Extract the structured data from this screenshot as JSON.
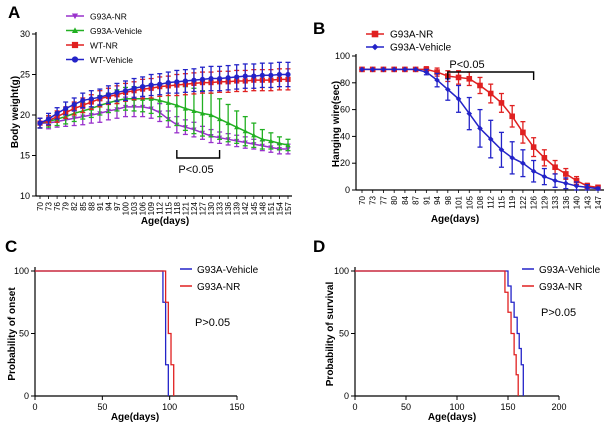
{
  "figure": {
    "panels": [
      "A",
      "B",
      "C",
      "D"
    ]
  },
  "chart_data": [
    {
      "panel": "A",
      "type": "line",
      "ylabel": "Body weight(g)",
      "xlabel": "Age(days)",
      "ylim": [
        10,
        30
      ],
      "yticks": [
        "10",
        "15",
        "20",
        "25",
        "30"
      ],
      "x": [
        70,
        73,
        76,
        79,
        82,
        85,
        88,
        91,
        94,
        97,
        100,
        103,
        106,
        109,
        112,
        115,
        118,
        121,
        124,
        127,
        130,
        133,
        136,
        139,
        142,
        145,
        148,
        151,
        154,
        157
      ],
      "x_tick_labels": [
        "70",
        "73",
        "76",
        "79",
        "82",
        "85",
        "88",
        "91",
        "94",
        "97",
        "100",
        "103",
        "106",
        "109",
        "112",
        "115",
        "118",
        "121",
        "124",
        "127",
        "130",
        "133",
        "136",
        "139",
        "142",
        "145",
        "148",
        "151",
        "154",
        "157"
      ],
      "series": [
        {
          "name": "G93A-NR",
          "color": "#9932CC",
          "marker": "triangle-down",
          "values": [
            19.0,
            19.0,
            19.2,
            19.4,
            19.6,
            19.8,
            20.0,
            20.2,
            20.5,
            20.7,
            21.0,
            21.0,
            21.0,
            20.8,
            20.3,
            19.5,
            18.8,
            18.5,
            18.2,
            17.8,
            17.4,
            17.2,
            17.0,
            16.8,
            16.6,
            16.4,
            16.2,
            16.0,
            15.8,
            15.8
          ],
          "errors": [
            0.6,
            0.7,
            0.7,
            0.8,
            0.9,
            1.0,
            1.0,
            1.1,
            1.1,
            1.1,
            1.2,
            1.2,
            1.2,
            1.2,
            1.1,
            1.0,
            1.0,
            0.9,
            0.9,
            0.8,
            0.8,
            0.7,
            0.7,
            0.7,
            0.7,
            0.6,
            0.6,
            0.6,
            0.6,
            0.6
          ]
        },
        {
          "name": "G93A-Vehicle",
          "color": "#22B022",
          "marker": "triangle-up",
          "values": [
            19.0,
            19.2,
            19.5,
            19.8,
            20.2,
            20.5,
            20.8,
            21.2,
            21.5,
            21.8,
            22.0,
            22.0,
            22.0,
            22.0,
            21.8,
            21.5,
            21.2,
            20.8,
            20.5,
            20.2,
            20.0,
            19.5,
            19.0,
            18.5,
            18.0,
            17.5,
            17.0,
            16.8,
            16.5,
            16.3
          ],
          "errors": [
            0.6,
            0.7,
            0.8,
            0.9,
            1.0,
            1.0,
            1.1,
            1.2,
            1.2,
            1.3,
            1.4,
            1.5,
            1.6,
            1.8,
            2.0,
            2.2,
            2.5,
            2.7,
            2.8,
            2.8,
            2.7,
            2.5,
            2.3,
            2.0,
            1.8,
            1.5,
            1.2,
            1.0,
            0.8,
            0.7
          ]
        },
        {
          "name": "WT-NR",
          "color": "#E02020",
          "marker": "square",
          "values": [
            19.0,
            19.3,
            19.8,
            20.3,
            20.8,
            21.2,
            21.6,
            22.0,
            22.3,
            22.5,
            22.8,
            23.0,
            23.2,
            23.3,
            23.5,
            23.6,
            23.7,
            23.8,
            23.9,
            24.0,
            24.0,
            24.1,
            24.1,
            24.2,
            24.2,
            24.3,
            24.3,
            24.3,
            24.4,
            24.4
          ],
          "errors": [
            0.6,
            0.6,
            0.7,
            0.7,
            0.8,
            0.9,
            0.9,
            1.0,
            1.0,
            1.1,
            1.1,
            1.1,
            1.2,
            1.2,
            1.2,
            1.2,
            1.3,
            1.3,
            1.3,
            1.3,
            1.3,
            1.3,
            1.3,
            1.3,
            1.3,
            1.3,
            1.3,
            1.3,
            1.3,
            1.3
          ]
        },
        {
          "name": "WT-Vehicle",
          "color": "#2323C8",
          "marker": "circle",
          "values": [
            19.0,
            19.5,
            20.2,
            20.8,
            21.3,
            21.8,
            22.0,
            22.2,
            22.5,
            22.8,
            23.0,
            23.3,
            23.5,
            23.7,
            23.8,
            24.0,
            24.1,
            24.2,
            24.3,
            24.4,
            24.5,
            24.5,
            24.6,
            24.7,
            24.8,
            24.8,
            24.9,
            24.9,
            25.0,
            25.0
          ],
          "errors": [
            0.6,
            0.7,
            0.7,
            0.8,
            0.8,
            0.9,
            1.0,
            1.0,
            1.1,
            1.1,
            1.2,
            1.2,
            1.2,
            1.3,
            1.3,
            1.3,
            1.4,
            1.4,
            1.4,
            1.5,
            1.5,
            1.5,
            1.5,
            1.5,
            1.5,
            1.5,
            1.5,
            1.5,
            1.5,
            1.5
          ]
        }
      ],
      "annotation": {
        "text": "P<0.05",
        "bracket_x": [
          118,
          133
        ]
      },
      "legend_position": "top-left"
    },
    {
      "panel": "B",
      "type": "line",
      "ylabel": "Hanging wire(sec)",
      "xlabel": "Age(days)",
      "ylim": [
        0,
        100
      ],
      "yticks": [
        "0",
        "20",
        "40",
        "60",
        "80",
        "100"
      ],
      "x": [
        70,
        73,
        77,
        80,
        84,
        87,
        91,
        94,
        98,
        101,
        105,
        108,
        112,
        115,
        119,
        122,
        126,
        129,
        133,
        136,
        140,
        143,
        147
      ],
      "x_tick_labels": [
        "70",
        "73",
        "77",
        "80",
        "84",
        "87",
        "91",
        "94",
        "98",
        "101",
        "105",
        "108",
        "112",
        "115",
        "119",
        "122",
        "126",
        "129",
        "133",
        "136",
        "140",
        "143",
        "147"
      ],
      "series": [
        {
          "name": "G93A-NR",
          "color": "#E02020",
          "marker": "square",
          "values": [
            90,
            90,
            90,
            90,
            90,
            90,
            90,
            88,
            85,
            84,
            83,
            78,
            72,
            65,
            55,
            43,
            32,
            24,
            17,
            12,
            7,
            3,
            2
          ],
          "errors": [
            0,
            0,
            0,
            0,
            0,
            0,
            2,
            3,
            4,
            5,
            5,
            6,
            7,
            7,
            8,
            8,
            7,
            6,
            5,
            4,
            3,
            2,
            1
          ]
        },
        {
          "name": "G93A-Vehicle",
          "color": "#2323C8",
          "marker": "diamond",
          "values": [
            90,
            90,
            90,
            90,
            90,
            90,
            88,
            82,
            75,
            68,
            57,
            46,
            38,
            30,
            24,
            20,
            14,
            10,
            7,
            5,
            3,
            2,
            1
          ],
          "errors": [
            0,
            0,
            0,
            0,
            0,
            0,
            2,
            5,
            8,
            10,
            12,
            14,
            14,
            13,
            12,
            10,
            8,
            6,
            5,
            4,
            3,
            2,
            1
          ]
        }
      ],
      "annotation": {
        "text": "P<0.05",
        "bracket_x": [
          98,
          126
        ]
      },
      "legend_position": "top-left"
    },
    {
      "panel": "C",
      "type": "line",
      "ylabel": "Probability of onset",
      "xlabel": "Age(days)",
      "xlim": [
        0,
        150
      ],
      "ylim": [
        0,
        100
      ],
      "xticks": [
        "0",
        "50",
        "100",
        "150"
      ],
      "yticks": [
        "0",
        "50",
        "100"
      ],
      "series": [
        {
          "name": "G93A-Vehicle",
          "color": "#2323C8",
          "steps": [
            [
              0,
              100
            ],
            [
              95,
              100
            ],
            [
              95,
              75
            ],
            [
              97,
              75
            ],
            [
              97,
              25
            ],
            [
              99,
              25
            ],
            [
              99,
              0
            ]
          ]
        },
        {
          "name": "G93A-NR",
          "color": "#E02020",
          "steps": [
            [
              0,
              100
            ],
            [
              97,
              100
            ],
            [
              97,
              75
            ],
            [
              99,
              75
            ],
            [
              99,
              50
            ],
            [
              101,
              50
            ],
            [
              101,
              25
            ],
            [
              103,
              25
            ],
            [
              103,
              0
            ]
          ]
        }
      ],
      "annotation": {
        "text": "P>0.05"
      },
      "legend_position": "top-right"
    },
    {
      "panel": "D",
      "type": "line",
      "ylabel": "Probability of survival",
      "xlabel": "Age(days)",
      "xlim": [
        0,
        200
      ],
      "ylim": [
        0,
        100
      ],
      "xticks": [
        "0",
        "50",
        "100",
        "150",
        "200"
      ],
      "yticks": [
        "0",
        "50",
        "100"
      ],
      "series": [
        {
          "name": "G93A-Vehicle",
          "color": "#2323C8",
          "steps": [
            [
              0,
              100
            ],
            [
              150,
              100
            ],
            [
              150,
              88
            ],
            [
              153,
              88
            ],
            [
              153,
              75
            ],
            [
              156,
              75
            ],
            [
              156,
              63
            ],
            [
              159,
              63
            ],
            [
              159,
              50
            ],
            [
              161,
              50
            ],
            [
              161,
              38
            ],
            [
              163,
              38
            ],
            [
              163,
              25
            ],
            [
              165,
              25
            ],
            [
              165,
              0
            ]
          ]
        },
        {
          "name": "G93A-NR",
          "color": "#E02020",
          "steps": [
            [
              0,
              100
            ],
            [
              147,
              100
            ],
            [
              147,
              83
            ],
            [
              150,
              83
            ],
            [
              150,
              67
            ],
            [
              153,
              67
            ],
            [
              153,
              50
            ],
            [
              156,
              50
            ],
            [
              156,
              33
            ],
            [
              158,
              33
            ],
            [
              158,
              17
            ],
            [
              160,
              17
            ],
            [
              160,
              0
            ]
          ]
        }
      ],
      "annotation": {
        "text": "P>0.05"
      },
      "legend_position": "top-right"
    }
  ]
}
